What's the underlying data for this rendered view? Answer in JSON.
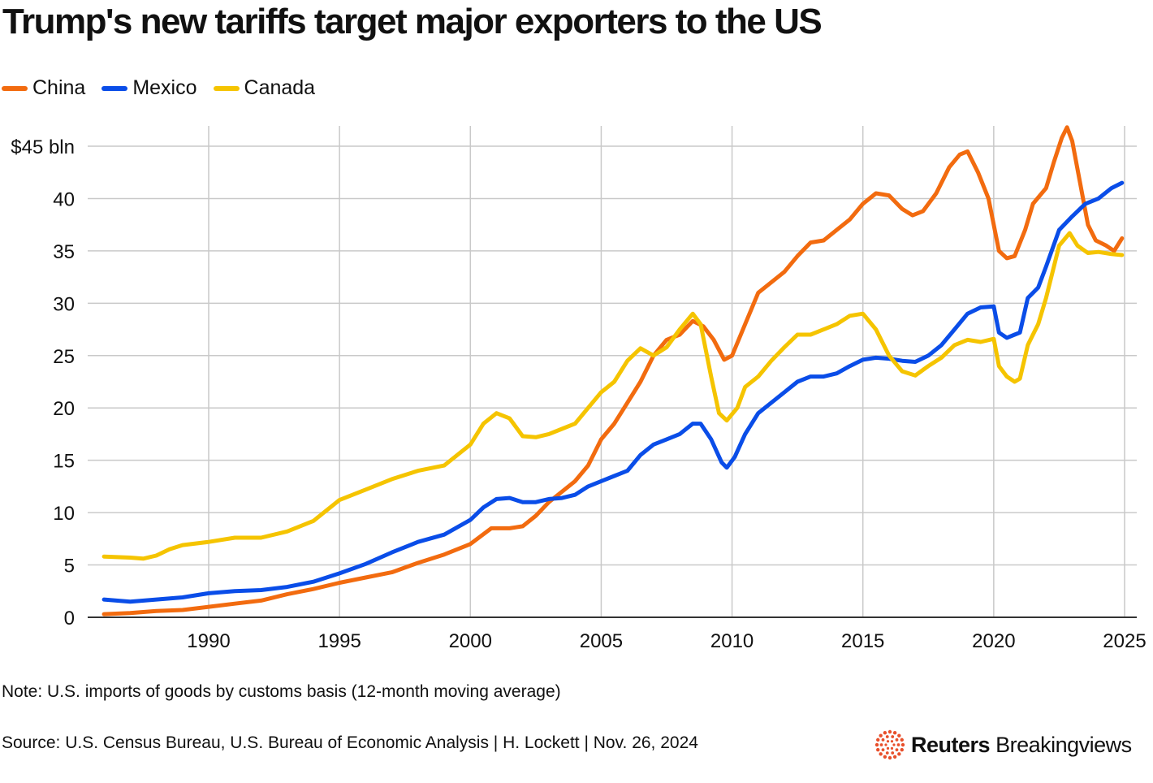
{
  "title": "Trump's new tariffs target major exporters to the US",
  "note": "Note: U.S. imports of goods by customs basis (12-month moving average)",
  "source": "Source: U.S. Census Bureau, U.S. Bureau of Economic Analysis | H. Lockett | Nov. 26, 2024",
  "logo": {
    "brand": "Reuters",
    "product": "Breakingviews",
    "icon": "reuters-dots-icon",
    "color": "#e8502c"
  },
  "chart_data": {
    "type": "line",
    "ylim": [
      0,
      45
    ],
    "xlim": [
      1985.9,
      2025
    ],
    "y_ticks": [
      0,
      5,
      10,
      15,
      20,
      25,
      30,
      35,
      40,
      45
    ],
    "y_tick_labels": [
      "0",
      "5",
      "10",
      "15",
      "20",
      "25",
      "30",
      "35",
      "40",
      "$45 bln"
    ],
    "x_ticks": [
      1990,
      1995,
      2000,
      2005,
      2010,
      2015,
      2020,
      2025
    ],
    "x_tick_labels": [
      "1990",
      "1995",
      "2000",
      "2005",
      "2010",
      "2015",
      "2020",
      "2025"
    ],
    "grid": true,
    "legend_position": "top-left",
    "series": [
      {
        "name": "China",
        "color": "#f26b0f",
        "points": [
          [
            1986.0,
            0.3
          ],
          [
            1987.0,
            0.4
          ],
          [
            1988.0,
            0.6
          ],
          [
            1989.0,
            0.7
          ],
          [
            1990.0,
            1.0
          ],
          [
            1991.0,
            1.3
          ],
          [
            1992.0,
            1.6
          ],
          [
            1993.0,
            2.2
          ],
          [
            1994.0,
            2.7
          ],
          [
            1995.0,
            3.3
          ],
          [
            1996.0,
            3.8
          ],
          [
            1997.0,
            4.3
          ],
          [
            1998.0,
            5.2
          ],
          [
            1999.0,
            6.0
          ],
          [
            2000.0,
            7.0
          ],
          [
            2000.8,
            8.5
          ],
          [
            2001.5,
            8.5
          ],
          [
            2002.0,
            8.7
          ],
          [
            2002.5,
            9.7
          ],
          [
            2003.0,
            11.0
          ],
          [
            2003.5,
            12.0
          ],
          [
            2004.0,
            13.0
          ],
          [
            2004.5,
            14.5
          ],
          [
            2005.0,
            17.0
          ],
          [
            2005.5,
            18.5
          ],
          [
            2006.0,
            20.5
          ],
          [
            2006.5,
            22.5
          ],
          [
            2007.0,
            25.0
          ],
          [
            2007.5,
            26.5
          ],
          [
            2008.0,
            27.0
          ],
          [
            2008.5,
            28.3
          ],
          [
            2008.9,
            27.8
          ],
          [
            2009.3,
            26.5
          ],
          [
            2009.7,
            24.6
          ],
          [
            2010.0,
            25.0
          ],
          [
            2010.5,
            28.0
          ],
          [
            2011.0,
            31.0
          ],
          [
            2011.5,
            32.0
          ],
          [
            2012.0,
            33.0
          ],
          [
            2012.5,
            34.5
          ],
          [
            2013.0,
            35.8
          ],
          [
            2013.5,
            36.0
          ],
          [
            2014.0,
            37.0
          ],
          [
            2014.5,
            38.0
          ],
          [
            2015.0,
            39.5
          ],
          [
            2015.5,
            40.5
          ],
          [
            2016.0,
            40.3
          ],
          [
            2016.5,
            39.0
          ],
          [
            2016.9,
            38.4
          ],
          [
            2017.3,
            38.8
          ],
          [
            2017.8,
            40.5
          ],
          [
            2018.3,
            43.0
          ],
          [
            2018.7,
            44.2
          ],
          [
            2019.0,
            44.5
          ],
          [
            2019.4,
            42.5
          ],
          [
            2019.8,
            40.0
          ],
          [
            2020.2,
            35.0
          ],
          [
            2020.5,
            34.3
          ],
          [
            2020.8,
            34.5
          ],
          [
            2021.2,
            37.0
          ],
          [
            2021.5,
            39.5
          ],
          [
            2022.0,
            41.0
          ],
          [
            2022.3,
            43.5
          ],
          [
            2022.6,
            45.8
          ],
          [
            2022.8,
            46.8
          ],
          [
            2023.0,
            45.5
          ],
          [
            2023.3,
            41.5
          ],
          [
            2023.6,
            37.5
          ],
          [
            2023.9,
            36.0
          ],
          [
            2024.3,
            35.5
          ],
          [
            2024.6,
            35.0
          ],
          [
            2024.9,
            36.2
          ]
        ]
      },
      {
        "name": "Mexico",
        "color": "#0a4de8",
        "points": [
          [
            1986.0,
            1.7
          ],
          [
            1987.0,
            1.5
          ],
          [
            1988.0,
            1.7
          ],
          [
            1989.0,
            1.9
          ],
          [
            1990.0,
            2.3
          ],
          [
            1991.0,
            2.5
          ],
          [
            1992.0,
            2.6
          ],
          [
            1993.0,
            2.9
          ],
          [
            1994.0,
            3.4
          ],
          [
            1995.0,
            4.2
          ],
          [
            1996.0,
            5.1
          ],
          [
            1997.0,
            6.2
          ],
          [
            1998.0,
            7.2
          ],
          [
            1999.0,
            7.9
          ],
          [
            2000.0,
            9.3
          ],
          [
            2000.5,
            10.5
          ],
          [
            2001.0,
            11.3
          ],
          [
            2001.5,
            11.4
          ],
          [
            2002.0,
            11.0
          ],
          [
            2002.5,
            11.0
          ],
          [
            2003.0,
            11.3
          ],
          [
            2003.5,
            11.4
          ],
          [
            2004.0,
            11.7
          ],
          [
            2004.5,
            12.5
          ],
          [
            2005.0,
            13.0
          ],
          [
            2005.5,
            13.5
          ],
          [
            2006.0,
            14.0
          ],
          [
            2006.5,
            15.5
          ],
          [
            2007.0,
            16.5
          ],
          [
            2007.5,
            17.0
          ],
          [
            2008.0,
            17.5
          ],
          [
            2008.5,
            18.5
          ],
          [
            2008.8,
            18.5
          ],
          [
            2009.2,
            17.0
          ],
          [
            2009.6,
            14.8
          ],
          [
            2009.8,
            14.3
          ],
          [
            2010.1,
            15.3
          ],
          [
            2010.5,
            17.5
          ],
          [
            2011.0,
            19.5
          ],
          [
            2011.5,
            20.5
          ],
          [
            2012.0,
            21.5
          ],
          [
            2012.5,
            22.5
          ],
          [
            2013.0,
            23.0
          ],
          [
            2013.5,
            23.0
          ],
          [
            2014.0,
            23.3
          ],
          [
            2014.5,
            24.0
          ],
          [
            2015.0,
            24.6
          ],
          [
            2015.5,
            24.8
          ],
          [
            2016.0,
            24.7
          ],
          [
            2016.5,
            24.5
          ],
          [
            2017.0,
            24.4
          ],
          [
            2017.5,
            25.0
          ],
          [
            2018.0,
            26.0
          ],
          [
            2018.5,
            27.5
          ],
          [
            2019.0,
            29.0
          ],
          [
            2019.5,
            29.6
          ],
          [
            2020.0,
            29.7
          ],
          [
            2020.2,
            27.2
          ],
          [
            2020.5,
            26.7
          ],
          [
            2020.8,
            27.0
          ],
          [
            2021.0,
            27.2
          ],
          [
            2021.3,
            30.5
          ],
          [
            2021.7,
            31.5
          ],
          [
            2022.0,
            33.5
          ],
          [
            2022.5,
            37.0
          ],
          [
            2023.0,
            38.3
          ],
          [
            2023.5,
            39.5
          ],
          [
            2024.0,
            40.0
          ],
          [
            2024.5,
            41.0
          ],
          [
            2024.9,
            41.5
          ]
        ]
      },
      {
        "name": "Canada",
        "color": "#f5c400",
        "points": [
          [
            1986.0,
            5.8
          ],
          [
            1987.0,
            5.7
          ],
          [
            1987.5,
            5.6
          ],
          [
            1988.0,
            5.9
          ],
          [
            1988.5,
            6.5
          ],
          [
            1989.0,
            6.9
          ],
          [
            1990.0,
            7.2
          ],
          [
            1991.0,
            7.6
          ],
          [
            1992.0,
            7.6
          ],
          [
            1993.0,
            8.2
          ],
          [
            1994.0,
            9.2
          ],
          [
            1995.0,
            11.2
          ],
          [
            1996.0,
            12.2
          ],
          [
            1997.0,
            13.2
          ],
          [
            1998.0,
            14.0
          ],
          [
            1999.0,
            14.5
          ],
          [
            2000.0,
            16.5
          ],
          [
            2000.5,
            18.5
          ],
          [
            2001.0,
            19.5
          ],
          [
            2001.5,
            19.0
          ],
          [
            2002.0,
            17.3
          ],
          [
            2002.5,
            17.2
          ],
          [
            2003.0,
            17.5
          ],
          [
            2003.5,
            18.0
          ],
          [
            2004.0,
            18.5
          ],
          [
            2004.5,
            20.0
          ],
          [
            2005.0,
            21.5
          ],
          [
            2005.5,
            22.5
          ],
          [
            2006.0,
            24.5
          ],
          [
            2006.5,
            25.7
          ],
          [
            2007.0,
            25.0
          ],
          [
            2007.5,
            25.8
          ],
          [
            2008.0,
            27.5
          ],
          [
            2008.5,
            29.0
          ],
          [
            2008.8,
            28.0
          ],
          [
            2009.2,
            23.0
          ],
          [
            2009.5,
            19.5
          ],
          [
            2009.8,
            18.8
          ],
          [
            2010.2,
            20.0
          ],
          [
            2010.5,
            22.0
          ],
          [
            2011.0,
            23.0
          ],
          [
            2011.5,
            24.5
          ],
          [
            2012.0,
            25.8
          ],
          [
            2012.5,
            27.0
          ],
          [
            2013.0,
            27.0
          ],
          [
            2013.5,
            27.5
          ],
          [
            2014.0,
            28.0
          ],
          [
            2014.5,
            28.8
          ],
          [
            2015.0,
            29.0
          ],
          [
            2015.5,
            27.5
          ],
          [
            2016.0,
            25.0
          ],
          [
            2016.5,
            23.5
          ],
          [
            2017.0,
            23.1
          ],
          [
            2017.5,
            24.0
          ],
          [
            2018.0,
            24.8
          ],
          [
            2018.5,
            26.0
          ],
          [
            2019.0,
            26.5
          ],
          [
            2019.5,
            26.3
          ],
          [
            2020.0,
            26.6
          ],
          [
            2020.2,
            24.0
          ],
          [
            2020.5,
            23.0
          ],
          [
            2020.8,
            22.5
          ],
          [
            2021.0,
            22.8
          ],
          [
            2021.3,
            26.0
          ],
          [
            2021.7,
            28.0
          ],
          [
            2022.0,
            30.5
          ],
          [
            2022.5,
            35.5
          ],
          [
            2022.9,
            36.7
          ],
          [
            2023.2,
            35.5
          ],
          [
            2023.6,
            34.8
          ],
          [
            2024.0,
            34.9
          ],
          [
            2024.5,
            34.7
          ],
          [
            2024.9,
            34.6
          ]
        ]
      }
    ]
  }
}
